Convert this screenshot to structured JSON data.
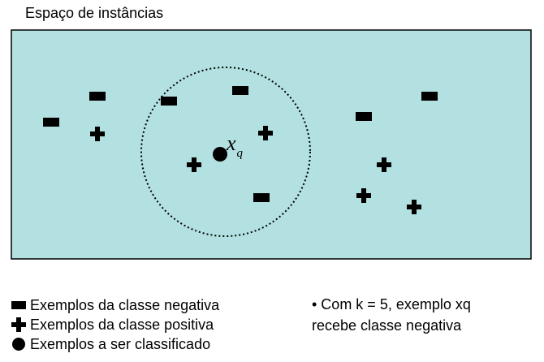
{
  "title": "Espaço de instâncias",
  "query_label": {
    "base": "x",
    "subscript": "q"
  },
  "legend": {
    "negative": "Exemplos da classe negativa",
    "positive": "Exemplos da classe positiva",
    "query": "Exemplos a ser classificado"
  },
  "note": {
    "line1": "• Com k = 5, exemplo xq",
    "line2": "recebe classe negativa"
  },
  "colors": {
    "background": "#b3e0e0",
    "marker": "#000000"
  },
  "icons": {
    "negative": "rectangle-icon",
    "positive": "plus-icon",
    "query": "filled-circle-icon"
  }
}
